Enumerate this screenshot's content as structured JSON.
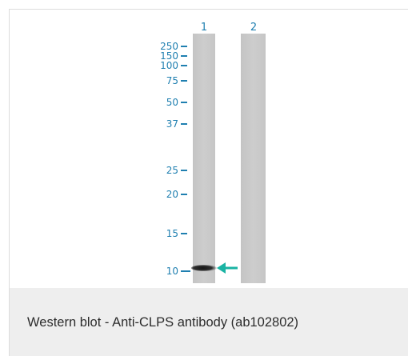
{
  "figure": {
    "caption": "Western blot - Anti-CLPS antibody (ab102802)",
    "lane_labels": [
      "1",
      "2"
    ],
    "molecular_weight_markers": [
      "250",
      "150",
      "100",
      "75",
      "50",
      "37",
      "25",
      "20",
      "15",
      "10"
    ],
    "arrow_color": "#1ab3a3",
    "marker_color": "#1f7fb0"
  }
}
